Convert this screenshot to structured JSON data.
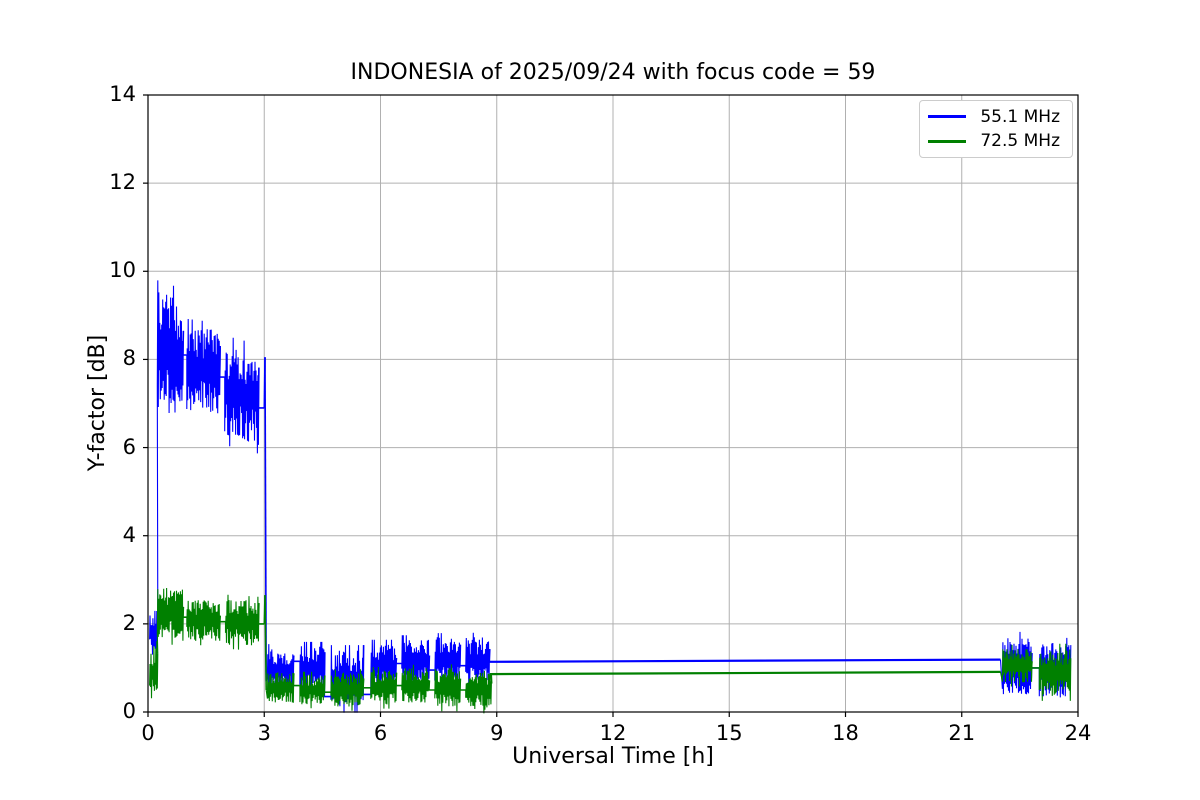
{
  "chart_data": {
    "type": "line",
    "title": "INDONESIA of 2025/09/24 with focus code = 59",
    "xlabel": "Universal Time [h]",
    "ylabel": "Y-factor [dB]",
    "xlim": [
      0,
      24
    ],
    "ylim": [
      0,
      14
    ],
    "xticks": [
      0,
      3,
      6,
      9,
      12,
      15,
      18,
      21,
      24
    ],
    "yticks": [
      0,
      2,
      4,
      6,
      8,
      10,
      12,
      14
    ],
    "grid": true,
    "grid_color": "#b0b0b0",
    "frame_color": "#000000",
    "legend_position": "upper right",
    "series": [
      {
        "name": "55.1 MHz",
        "color": "#0000ff",
        "segments": [
          {
            "kind": "noise",
            "t": [
              0.04,
              0.24
            ],
            "v": [
              1.8,
              1.8
            ],
            "amp": 0.5
          },
          {
            "kind": "noise",
            "t": [
              0.24,
              0.9
            ],
            "v": [
              8.2,
              8.0
            ],
            "amp": 1.35
          },
          {
            "kind": "line",
            "t": [
              0.9,
              1.0
            ],
            "v": [
              8.1,
              8.1
            ]
          },
          {
            "kind": "noise",
            "t": [
              1.0,
              1.85
            ],
            "v": [
              7.8,
              7.7
            ],
            "amp": 0.95
          },
          {
            "kind": "line",
            "t": [
              1.85,
              1.98
            ],
            "v": [
              7.6,
              7.6
            ]
          },
          {
            "kind": "noise",
            "t": [
              1.98,
              2.85
            ],
            "v": [
              7.3,
              7.1
            ],
            "amp": 1.05
          },
          {
            "kind": "line",
            "t": [
              2.85,
              3.0
            ],
            "v": [
              6.9,
              6.9
            ]
          },
          {
            "kind": "line",
            "t": [
              3.0,
              3.02
            ],
            "v": [
              6.9,
              8.05
            ]
          },
          {
            "kind": "line",
            "t": [
              3.02,
              3.05
            ],
            "v": [
              8.05,
              0.7
            ]
          },
          {
            "kind": "noise",
            "t": [
              3.08,
              3.75
            ],
            "v": [
              0.95,
              0.95
            ],
            "amp": 0.5
          },
          {
            "kind": "line",
            "t": [
              3.75,
              3.92
            ],
            "v": [
              1.15,
              1.15
            ]
          },
          {
            "kind": "noise",
            "t": [
              3.92,
              4.55
            ],
            "v": [
              1.0,
              1.0
            ],
            "amp": 0.5
          },
          {
            "kind": "line",
            "t": [
              4.55,
              4.72
            ],
            "v": [
              0.35,
              0.35
            ]
          },
          {
            "kind": "noise",
            "t": [
              4.72,
              5.55
            ],
            "v": [
              0.75,
              0.75
            ],
            "amp": 0.65
          },
          {
            "kind": "line",
            "t": [
              5.55,
              5.75
            ],
            "v": [
              0.4,
              0.4
            ]
          },
          {
            "kind": "noise",
            "t": [
              5.75,
              6.4
            ],
            "v": [
              1.05,
              1.05
            ],
            "amp": 0.5
          },
          {
            "kind": "line",
            "t": [
              6.4,
              6.55
            ],
            "v": [
              1.1,
              1.1
            ]
          },
          {
            "kind": "noise",
            "t": [
              6.55,
              7.25
            ],
            "v": [
              1.15,
              1.15
            ],
            "amp": 0.5
          },
          {
            "kind": "line",
            "t": [
              7.25,
              7.4
            ],
            "v": [
              0.95,
              0.95
            ]
          },
          {
            "kind": "noise",
            "t": [
              7.4,
              8.05
            ],
            "v": [
              1.2,
              1.2
            ],
            "amp": 0.5
          },
          {
            "kind": "line",
            "t": [
              8.05,
              8.2
            ],
            "v": [
              1.05,
              1.05
            ]
          },
          {
            "kind": "noise",
            "t": [
              8.2,
              8.8
            ],
            "v": [
              1.15,
              1.15
            ],
            "amp": 0.55
          },
          {
            "kind": "line",
            "t": [
              8.8,
              22.0
            ],
            "v": [
              1.14,
              1.19
            ]
          },
          {
            "kind": "noise",
            "t": [
              22.05,
              22.8
            ],
            "v": [
              1.05,
              1.05
            ],
            "amp": 0.65
          },
          {
            "kind": "line",
            "t": [
              22.8,
              23.0
            ],
            "v": [
              1.0,
              1.0
            ]
          },
          {
            "kind": "noise",
            "t": [
              23.0,
              23.8
            ],
            "v": [
              0.95,
              0.95
            ],
            "amp": 0.62
          }
        ]
      },
      {
        "name": "72.5 MHz",
        "color": "#008000",
        "segments": [
          {
            "kind": "noise",
            "t": [
              0.04,
              0.24
            ],
            "v": [
              0.9,
              0.9
            ],
            "amp": 0.6
          },
          {
            "kind": "noise",
            "t": [
              0.24,
              0.9
            ],
            "v": [
              2.28,
              2.2
            ],
            "amp": 0.6
          },
          {
            "kind": "line",
            "t": [
              0.9,
              1.0
            ],
            "v": [
              2.15,
              2.15
            ]
          },
          {
            "kind": "noise",
            "t": [
              1.0,
              1.85
            ],
            "v": [
              2.08,
              2.05
            ],
            "amp": 0.47
          },
          {
            "kind": "line",
            "t": [
              1.85,
              2.0
            ],
            "v": [
              2.05,
              2.05
            ]
          },
          {
            "kind": "noise",
            "t": [
              2.0,
              2.85
            ],
            "v": [
              2.05,
              2.0
            ],
            "amp": 0.52
          },
          {
            "kind": "line",
            "t": [
              2.85,
              3.0
            ],
            "v": [
              2.0,
              2.0
            ]
          },
          {
            "kind": "line",
            "t": [
              3.0,
              3.02
            ],
            "v": [
              2.0,
              2.65
            ]
          },
          {
            "kind": "line",
            "t": [
              3.02,
              3.05
            ],
            "v": [
              2.65,
              0.5
            ]
          },
          {
            "kind": "noise",
            "t": [
              3.08,
              3.75
            ],
            "v": [
              0.55,
              0.55
            ],
            "amp": 0.35
          },
          {
            "kind": "line",
            "t": [
              3.75,
              3.92
            ],
            "v": [
              0.6,
              0.6
            ]
          },
          {
            "kind": "noise",
            "t": [
              3.92,
              4.55
            ],
            "v": [
              0.5,
              0.5
            ],
            "amp": 0.35
          },
          {
            "kind": "line",
            "t": [
              4.55,
              4.72
            ],
            "v": [
              0.45,
              0.45
            ]
          },
          {
            "kind": "noise",
            "t": [
              4.72,
              5.55
            ],
            "v": [
              0.5,
              0.5
            ],
            "amp": 0.4
          },
          {
            "kind": "line",
            "t": [
              5.55,
              5.75
            ],
            "v": [
              0.55,
              0.55
            ]
          },
          {
            "kind": "noise",
            "t": [
              5.75,
              6.4
            ],
            "v": [
              0.55,
              0.55
            ],
            "amp": 0.4
          },
          {
            "kind": "line",
            "t": [
              6.4,
              6.55
            ],
            "v": [
              0.6,
              0.6
            ]
          },
          {
            "kind": "noise",
            "t": [
              6.55,
              7.25
            ],
            "v": [
              0.6,
              0.6
            ],
            "amp": 0.4
          },
          {
            "kind": "line",
            "t": [
              7.25,
              7.4
            ],
            "v": [
              0.5,
              0.5
            ]
          },
          {
            "kind": "noise",
            "t": [
              7.4,
              8.05
            ],
            "v": [
              0.55,
              0.55
            ],
            "amp": 0.45
          },
          {
            "kind": "line",
            "t": [
              8.05,
              8.2
            ],
            "v": [
              0.5,
              0.5
            ]
          },
          {
            "kind": "noise",
            "t": [
              8.2,
              8.85
            ],
            "v": [
              0.5,
              0.5
            ],
            "amp": 0.45
          },
          {
            "kind": "line",
            "t": [
              8.85,
              22.0
            ],
            "v": [
              0.86,
              0.91
            ]
          },
          {
            "kind": "noise",
            "t": [
              22.05,
              22.8
            ],
            "v": [
              1.05,
              1.05
            ],
            "amp": 0.4
          },
          {
            "kind": "line",
            "t": [
              22.8,
              23.0
            ],
            "v": [
              1.0,
              1.0
            ]
          },
          {
            "kind": "noise",
            "t": [
              23.0,
              23.8
            ],
            "v": [
              0.9,
              0.9
            ],
            "amp": 0.55
          }
        ]
      }
    ]
  }
}
